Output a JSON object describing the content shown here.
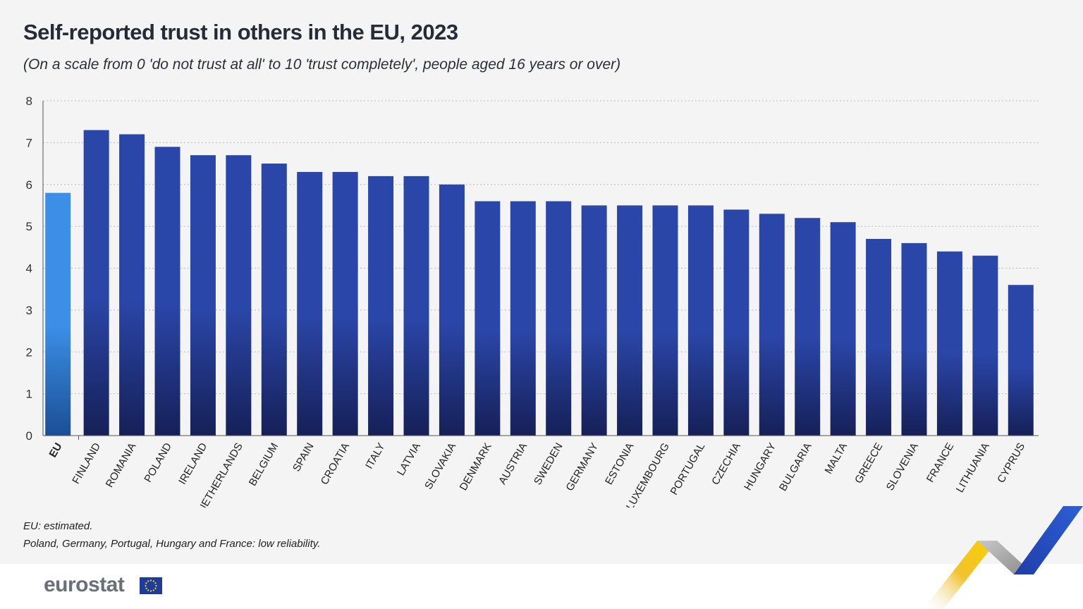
{
  "header": {
    "title": "Self-reported trust in others in the EU, 2023",
    "subtitle": "(On a scale from 0 'do not trust at all' to 10 'trust completely', people aged 16 years or over)"
  },
  "notes": {
    "note1": "EU: estimated.",
    "note2": "Poland, Germany, Portugal, Hungary and France: low reliability."
  },
  "footer": {
    "logo_text": "eurostat"
  },
  "colors": {
    "eu_top": "#3b8fe6",
    "eu_bottom": "#1a4f95",
    "bar_top": "#2a46a8",
    "bar_bottom": "#162058",
    "grid": "#bbbbbb",
    "axis": "#555555"
  },
  "chart_data": {
    "type": "bar",
    "title": "Self-reported trust in others in the EU, 2023",
    "subtitle": "(On a scale from 0 'do not trust at all' to 10 'trust completely', people aged 16 years or over)",
    "categories": [
      "EU",
      "FINLAND",
      "ROMANIA",
      "POLAND",
      "IRELAND",
      "NETHERLANDS",
      "BELGIUM",
      "SPAIN",
      "CROATIA",
      "ITALY",
      "LATVIA",
      "SLOVAKIA",
      "DENMARK",
      "AUSTRIA",
      "SWEDEN",
      "GERMANY",
      "ESTONIA",
      "LUXEMBOURG",
      "PORTUGAL",
      "CZECHIA",
      "HUNGARY",
      "BULGARIA",
      "MALTA",
      "GREECE",
      "SLOVENIA",
      "FRANCE",
      "LITHUANIA",
      "CYPRUS"
    ],
    "values": [
      5.8,
      7.3,
      7.2,
      6.9,
      6.7,
      6.7,
      6.5,
      6.3,
      6.3,
      6.2,
      6.2,
      6.0,
      5.6,
      5.6,
      5.6,
      5.5,
      5.5,
      5.5,
      5.5,
      5.4,
      5.3,
      5.2,
      5.1,
      4.7,
      4.6,
      4.4,
      4.3,
      3.6
    ],
    "highlight": "EU",
    "yticks": [
      "0",
      "1",
      "2",
      "3",
      "4",
      "5",
      "6",
      "7",
      "8"
    ],
    "ylim": [
      0,
      8
    ],
    "grid": true,
    "legend": "none"
  }
}
